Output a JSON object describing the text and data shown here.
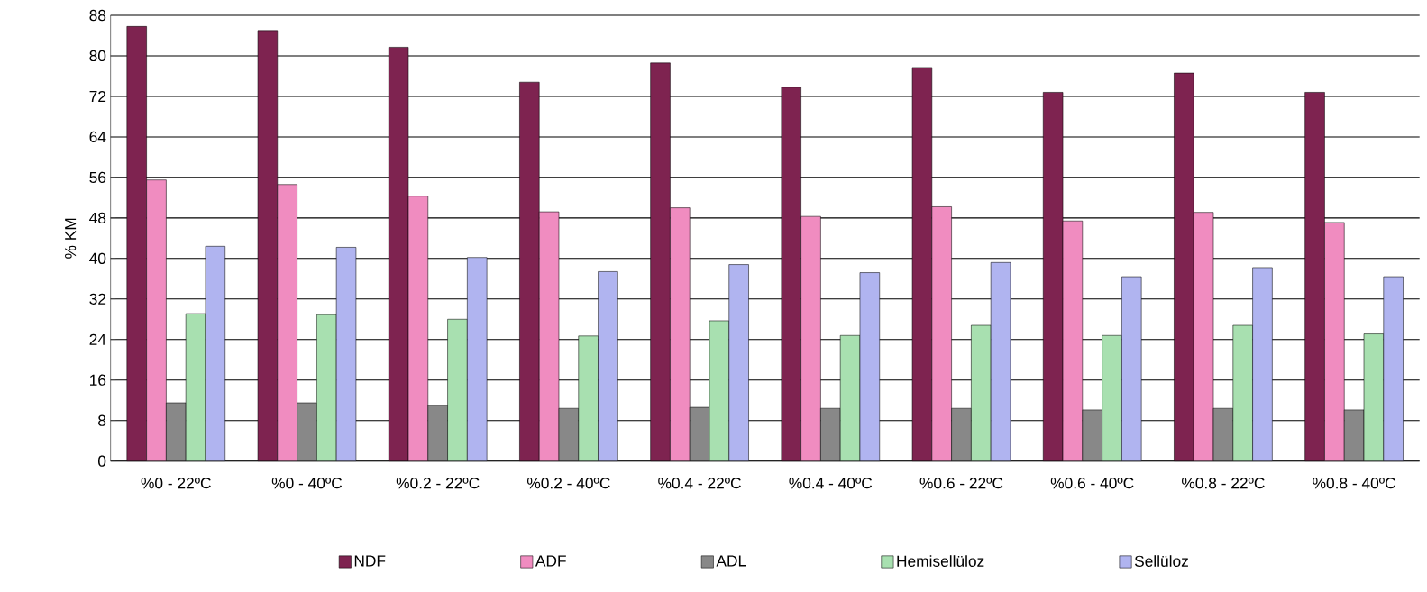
{
  "chart_data": {
    "type": "bar",
    "ylabel": "% KM",
    "categories": [
      "%0 - 22ºC",
      "%0 - 40ºC",
      "%0.2 - 22ºC",
      "%0.2 - 40ºC",
      "%0.4 - 22ºC",
      "%0.4 - 40ºC",
      "%0.6 - 22ºC",
      "%0.6 - 40ºC",
      "%0.8 - 22ºC",
      "%0.8 - 40ºC"
    ],
    "series": [
      {
        "name": "NDF",
        "color": "#7e2350",
        "values": [
          85.8,
          85.0,
          81.7,
          74.8,
          78.6,
          73.8,
          77.7,
          72.8,
          76.6,
          72.8
        ]
      },
      {
        "name": "ADF",
        "color": "#f08cc0",
        "values": [
          55.5,
          54.6,
          52.3,
          49.2,
          50.0,
          48.3,
          50.2,
          47.4,
          49.1,
          47.1
        ]
      },
      {
        "name": "ADL",
        "color": "#888888",
        "values": [
          11.5,
          11.5,
          11.0,
          10.4,
          10.6,
          10.4,
          10.4,
          10.1,
          10.4,
          10.1
        ]
      },
      {
        "name": "Hemisellüloz",
        "color": "#a8e0b0",
        "values": [
          29.1,
          28.9,
          28.0,
          24.7,
          27.7,
          24.8,
          26.8,
          24.8,
          26.8,
          25.1
        ]
      },
      {
        "name": "Sellüloz",
        "color": "#b0b4f0",
        "values": [
          42.4,
          42.2,
          40.2,
          37.4,
          38.8,
          37.2,
          39.2,
          36.4,
          38.2,
          36.4
        ]
      }
    ],
    "ylim": [
      0,
      88
    ],
    "yticks": [
      0,
      8,
      16,
      24,
      32,
      40,
      48,
      56,
      64,
      72,
      80,
      88
    ],
    "grid": "y",
    "legend": "bottom"
  }
}
